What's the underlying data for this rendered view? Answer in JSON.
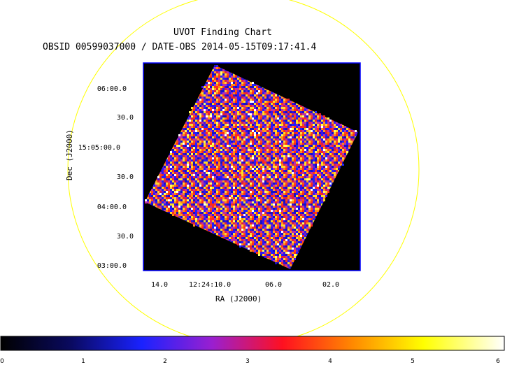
{
  "title": "UVOT Finding Chart",
  "subtitle": "OBSID 00599037000 / DATE-OBS 2014-05-15T09:17:41.4",
  "xlabel": "RA (J2000)",
  "ylabel": "Dec (J2000)",
  "x_ticks": [
    "14.0",
    "12:24:10.0",
    "06.0",
    "02.0"
  ],
  "y_ticks": [
    "06:00.0",
    "30.0",
    "15:05:00.0",
    "30.0",
    "04:00.0",
    "30.0",
    "03:00.0"
  ],
  "colorbar": {
    "ticks": [
      "0",
      "1",
      "2",
      "3",
      "4",
      "5",
      "6"
    ],
    "range": [
      0,
      6
    ]
  },
  "colors": {
    "circle": "#ffff00",
    "frame": "#0000ff",
    "background": "#000000"
  }
}
